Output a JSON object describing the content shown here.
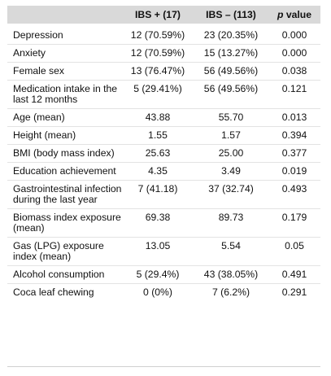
{
  "table": {
    "headers": {
      "label": "",
      "ibs_pos": "IBS + (17)",
      "ibs_neg": "IBS – (113)",
      "p_italic": "p",
      "p_rest": " value"
    },
    "rows": [
      {
        "label": "Depression",
        "ibs_pos": "12 (70.59%)",
        "ibs_neg": "23 (20.35%)",
        "p": "0.000"
      },
      {
        "label": "Anxiety",
        "ibs_pos": "12 (70.59%)",
        "ibs_neg": "15 (13.27%)",
        "p": "0.000"
      },
      {
        "label": "Female sex",
        "ibs_pos": "13 (76.47%)",
        "ibs_neg": "56 (49.56%)",
        "p": "0.038"
      },
      {
        "label": "Medication intake in the last 12 months",
        "ibs_pos": "5 (29.41%)",
        "ibs_neg": "56 (49.56%)",
        "p": "0.121"
      },
      {
        "label": "Age (mean)",
        "ibs_pos": "43.88",
        "ibs_neg": "55.70",
        "p": "0.013"
      },
      {
        "label": "Height (mean)",
        "ibs_pos": "1.55",
        "ibs_neg": "1.57",
        "p": "0.394"
      },
      {
        "label": "BMI  (body mass index)",
        "ibs_pos": "25.63",
        "ibs_neg": "25.00",
        "p": "0.377"
      },
      {
        "label": "Education achievement",
        "ibs_pos": "4.35",
        "ibs_neg": "3.49",
        "p": "0.019"
      },
      {
        "label": "Gastrointestinal infection during the last year",
        "ibs_pos": "7 (41.18)",
        "ibs_neg": "37 (32.74)",
        "p": "0.493"
      },
      {
        "label": "Biomass index exposure (mean)",
        "ibs_pos": "69.38",
        "ibs_neg": "89.73",
        "p": "0.179"
      },
      {
        "label": "Gas (LPG) exposure index (mean)",
        "ibs_pos": "13.05",
        "ibs_neg": "5.54",
        "p": "0.05"
      },
      {
        "label": "Alcohol consumption",
        "ibs_pos": "5 (29.4%)",
        "ibs_neg": "43 (38.05%)",
        "p": "0.491"
      },
      {
        "label": "Coca leaf chewing",
        "ibs_pos": "0 (0%)",
        "ibs_neg": "7 (6.2%)",
        "p": "0.291"
      }
    ]
  }
}
